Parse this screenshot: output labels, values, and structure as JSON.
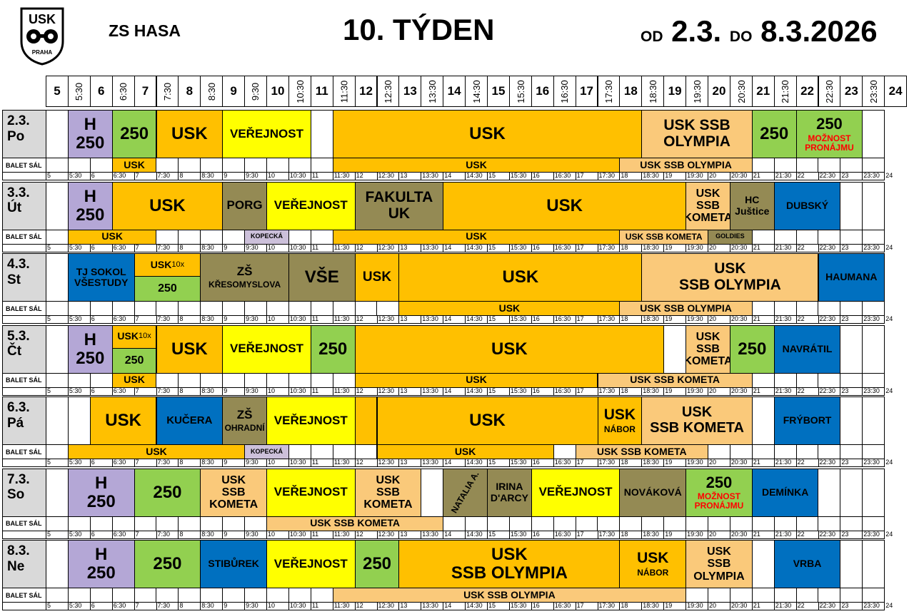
{
  "header": {
    "logo_text": "USK",
    "logo_subtext": "PRAHA",
    "venue": "ZS HASA",
    "week_title": "10. TÝDEN",
    "from_word": "OD",
    "from_date": "2.3.",
    "to_word": "DO",
    "to_date": "8.3.2026"
  },
  "hours": [
    "5",
    "5:30",
    "6",
    "6:30",
    "7",
    "7:30",
    "8",
    "8:30",
    "9",
    "9:30",
    "10",
    "10:30",
    "11",
    "11:30",
    "12",
    "12:30",
    "13",
    "13:30",
    "14",
    "14:30",
    "15",
    "15:30",
    "16",
    "16:30",
    "17",
    "17:30",
    "18",
    "18:30",
    "19",
    "19:30",
    "20",
    "20:30",
    "21",
    "21:30",
    "22",
    "22:30",
    "23",
    "23:30",
    "24"
  ],
  "ballet_label": "BALET SÁL",
  "colors": {
    "purple": "#b4a7d6",
    "green": "#92d050",
    "orange": "#ffc000",
    "yellow": "#ffff00",
    "olive": "#948a54",
    "blue": "#0070c0",
    "peach": "#fac97a",
    "lilac": "#ccc0da",
    "red_text": "#ff0000",
    "day_label_bg": "#d9d9d9"
  },
  "days": [
    {
      "label": "2.3.\nPo",
      "main": [
        {
          "s": 1,
          "e": 3,
          "text": "H\n250",
          "c": "purple",
          "fs": 24
        },
        {
          "s": 3,
          "e": 5,
          "text": "250",
          "c": "green",
          "fs": 24
        },
        {
          "s": 5,
          "e": 8,
          "text": "USK",
          "c": "orange",
          "fs": 24
        },
        {
          "s": 8,
          "e": 12,
          "text": "VEŘEJNOST",
          "c": "yellow",
          "fs": 17
        },
        {
          "s": 13,
          "e": 27,
          "text": "USK",
          "c": "orange",
          "fs": 24
        },
        {
          "s": 27,
          "e": 32,
          "text": "USK SSB\nOLYMPIA",
          "c": "peach",
          "fs": 21
        },
        {
          "s": 32,
          "e": 34,
          "text": "250",
          "c": "green",
          "fs": 24
        },
        {
          "s": 34,
          "e": 37,
          "text": "250",
          "c": "green",
          "fs": 22,
          "sub": "MOŽNOST\nPRONÁJMU",
          "sub_c": "red_text"
        }
      ],
      "ballet": [
        {
          "s": 3,
          "e": 5,
          "text": "USK",
          "c": "orange",
          "fs": 14
        },
        {
          "s": 13,
          "e": 26,
          "text": "USK",
          "c": "orange",
          "fs": 14
        },
        {
          "s": 26,
          "e": 32,
          "text": "USK SSB OLYMPIA",
          "c": "peach",
          "fs": 14
        }
      ]
    },
    {
      "label": "3.3.\nÚt",
      "main": [
        {
          "s": 1,
          "e": 3,
          "text": "H\n250",
          "c": "purple",
          "fs": 24
        },
        {
          "s": 3,
          "e": 8,
          "text": "USK",
          "c": "orange",
          "fs": 24
        },
        {
          "s": 8,
          "e": 10,
          "text": "PORG",
          "c": "olive",
          "fs": 17
        },
        {
          "s": 10,
          "e": 14,
          "text": "VEŘEJNOST",
          "c": "yellow",
          "fs": 17
        },
        {
          "s": 14,
          "e": 18,
          "text": "FAKULTA\nUK",
          "c": "olive",
          "fs": 21
        },
        {
          "s": 18,
          "e": 29,
          "text": "USK",
          "c": "orange",
          "fs": 24
        },
        {
          "s": 29,
          "e": 31,
          "text": "USK\nSSB\nKOMETA",
          "c": "peach",
          "fs": 16
        },
        {
          "s": 31,
          "e": 33,
          "text": "HC\nJuštice",
          "c": "olive",
          "fs": 14
        },
        {
          "s": 33,
          "e": 36,
          "text": "DUBSKÝ",
          "c": "blue",
          "fs": 14
        }
      ],
      "ballet": [
        {
          "s": 1,
          "e": 5,
          "text": "USK",
          "c": "orange",
          "fs": 14
        },
        {
          "s": 9,
          "e": 11,
          "text": "KOPECKÁ",
          "c": "lilac",
          "fs": 9
        },
        {
          "s": 13,
          "e": 26,
          "text": "USK",
          "c": "orange",
          "fs": 14
        },
        {
          "s": 26,
          "e": 30,
          "text": "USK SSB KOMETA",
          "c": "peach",
          "fs": 12
        },
        {
          "s": 30,
          "e": 32,
          "text": "GOLDIES",
          "c": "olive",
          "fs": 9
        }
      ]
    },
    {
      "label": "4.3.\nSt",
      "main": [
        {
          "s": 1,
          "e": 4,
          "text": "TJ SOKOL\nVŠESTUDY",
          "c": "blue",
          "fs": 14
        },
        {
          "s": 4,
          "e": 7,
          "text": "USK",
          "c": "orange",
          "fs": 14,
          "half": "top",
          "suffix": "10x"
        },
        {
          "s": 4,
          "e": 7,
          "text": "250",
          "c": "green",
          "fs": 16,
          "half": "bottom"
        },
        {
          "s": 7,
          "e": 11,
          "text": "ZŠ",
          "c": "olive",
          "fs": 17,
          "sub": "KŘESOMYSLOVA",
          "sub_c": "black"
        },
        {
          "s": 11,
          "e": 14,
          "text": "VŠE",
          "c": "olive",
          "fs": 24
        },
        {
          "s": 14,
          "e": 16,
          "text": "USK",
          "c": "orange",
          "fs": 19
        },
        {
          "s": 16,
          "e": 27,
          "text": "USK",
          "c": "orange",
          "fs": 24
        },
        {
          "s": 27,
          "e": 35,
          "text": "USK\nSSB OLYMPIA",
          "c": "peach",
          "fs": 21
        },
        {
          "s": 35,
          "e": 38,
          "text": "HAUMANA",
          "c": "blue",
          "fs": 14
        }
      ],
      "ballet": [
        {
          "s": 16,
          "e": 26,
          "text": "USK",
          "c": "orange",
          "fs": 14
        },
        {
          "s": 26,
          "e": 32,
          "text": "USK SSB OLYMPIA",
          "c": "peach",
          "fs": 14
        }
      ]
    },
    {
      "label": "5.3.\nČt",
      "main": [
        {
          "s": 1,
          "e": 3,
          "text": "H\n250",
          "c": "purple",
          "fs": 24
        },
        {
          "s": 3,
          "e": 5,
          "text": "USK",
          "c": "orange",
          "fs": 14,
          "half": "top",
          "suffix": "10x"
        },
        {
          "s": 3,
          "e": 5,
          "text": "250",
          "c": "green",
          "fs": 16,
          "half": "bottom"
        },
        {
          "s": 5,
          "e": 8,
          "text": "USK",
          "c": "orange",
          "fs": 24
        },
        {
          "s": 8,
          "e": 12,
          "text": "VEŘEJNOST",
          "c": "yellow",
          "fs": 17
        },
        {
          "s": 12,
          "e": 14,
          "text": "250",
          "c": "green",
          "fs": 24
        },
        {
          "s": 14,
          "e": 28,
          "text": "USK",
          "c": "orange",
          "fs": 24
        },
        {
          "s": 29,
          "e": 31,
          "text": "USK\nSSB\nKOMETA",
          "c": "peach",
          "fs": 16
        },
        {
          "s": 31,
          "e": 33,
          "text": "250",
          "c": "green",
          "fs": 24
        },
        {
          "s": 33,
          "e": 36,
          "text": "NAVRÁTIL",
          "c": "blue",
          "fs": 14
        }
      ],
      "ballet": [
        {
          "s": 3,
          "e": 5,
          "text": "USK",
          "c": "orange",
          "fs": 14
        },
        {
          "s": 14,
          "e": 25,
          "text": "USK",
          "c": "orange",
          "fs": 14
        },
        {
          "s": 25,
          "e": 32,
          "text": "USK SSB KOMETA",
          "c": "peach",
          "fs": 14
        }
      ]
    },
    {
      "label": "6.3.\nPá",
      "main": [
        {
          "s": 2,
          "e": 5,
          "text": "USK",
          "c": "orange",
          "fs": 24
        },
        {
          "s": 5,
          "e": 8,
          "text": "KUČERA",
          "c": "blue",
          "fs": 15
        },
        {
          "s": 8,
          "e": 10,
          "text": "ZŠ",
          "c": "olive",
          "fs": 17,
          "sub": "OHRADNÍ",
          "sub_c": "black"
        },
        {
          "s": 10,
          "e": 14,
          "text": "VEŘEJNOST",
          "c": "yellow",
          "fs": 17
        },
        {
          "s": 14,
          "e": 15,
          "text": "",
          "c": "orange",
          "fs": 14
        },
        {
          "s": 15,
          "e": 25,
          "text": "USK",
          "c": "orange",
          "fs": 24
        },
        {
          "s": 25,
          "e": 27,
          "text": "USK",
          "c": "orange",
          "fs": 21,
          "sub": "NÁBOR",
          "sub_c": "black"
        },
        {
          "s": 27,
          "e": 32,
          "text": "USK\nSSB KOMETA",
          "c": "peach",
          "fs": 20
        },
        {
          "s": 33,
          "e": 36,
          "text": "FRÝBORT",
          "c": "blue",
          "fs": 14
        }
      ],
      "ballet": [
        {
          "s": 1,
          "e": 9,
          "text": "USK",
          "c": "orange",
          "fs": 14
        },
        {
          "s": 9,
          "e": 11,
          "text": "KOPECKÁ",
          "c": "lilac",
          "fs": 9
        },
        {
          "s": 15,
          "e": 23,
          "text": "USK",
          "c": "orange",
          "fs": 14
        },
        {
          "s": 24,
          "e": 30,
          "text": "USK SSB KOMETA",
          "c": "peach",
          "fs": 14
        }
      ]
    },
    {
      "label": "7.3.\nSo",
      "main": [
        {
          "s": 1,
          "e": 4,
          "text": "H\n250",
          "c": "purple",
          "fs": 24
        },
        {
          "s": 4,
          "e": 7,
          "text": "250",
          "c": "green",
          "fs": 24
        },
        {
          "s": 7,
          "e": 10,
          "text": "USK\nSSB\nKOMETA",
          "c": "peach",
          "fs": 16
        },
        {
          "s": 10,
          "e": 14,
          "text": "VEŘEJNOST",
          "c": "yellow",
          "fs": 17
        },
        {
          "s": 14,
          "e": 17,
          "text": "USK\nSSB\nKOMETA",
          "c": "peach",
          "fs": 16
        },
        {
          "s": 18,
          "e": 20,
          "text": "NATALIA A.",
          "c": "olive",
          "fs": 12,
          "rot": true
        },
        {
          "s": 20,
          "e": 22,
          "text": "IRINA\nD'ARCY",
          "c": "olive",
          "fs": 14
        },
        {
          "s": 22,
          "e": 26,
          "text": "VEŘEJNOST",
          "c": "yellow",
          "fs": 17
        },
        {
          "s": 26,
          "e": 29,
          "text": "NOVÁKOVÁ",
          "c": "olive",
          "fs": 14
        },
        {
          "s": 29,
          "e": 32,
          "text": "250",
          "c": "green",
          "fs": 22,
          "sub": "MOŽNOST\nPRONÁJMU",
          "sub_c": "red_text"
        },
        {
          "s": 32,
          "e": 35,
          "text": "DEMÍNKA",
          "c": "blue",
          "fs": 14
        }
      ],
      "ballet": [
        {
          "s": 10,
          "e": 18,
          "text": "USK SSB KOMETA",
          "c": "peach",
          "fs": 14
        }
      ]
    },
    {
      "label": "8.3.\nNe",
      "main": [
        {
          "s": 1,
          "e": 4,
          "text": "H\n250",
          "c": "purple",
          "fs": 24
        },
        {
          "s": 4,
          "e": 7,
          "text": "250",
          "c": "green",
          "fs": 24
        },
        {
          "s": 7,
          "e": 10,
          "text": "STIBŮREK",
          "c": "blue",
          "fs": 14
        },
        {
          "s": 10,
          "e": 14,
          "text": "VEŘEJNOST",
          "c": "yellow",
          "fs": 17
        },
        {
          "s": 14,
          "e": 16,
          "text": "250",
          "c": "green",
          "fs": 24
        },
        {
          "s": 16,
          "e": 26,
          "text": "USK\nSSB OLYMPIA",
          "c": "orange",
          "fs": 24
        },
        {
          "s": 26,
          "e": 29,
          "text": "USK",
          "c": "orange",
          "fs": 21,
          "sub": "NÁBOR",
          "sub_c": "black"
        },
        {
          "s": 29,
          "e": 32,
          "text": "USK\nSSB\nOLYMPIA",
          "c": "peach",
          "fs": 16
        },
        {
          "s": 33,
          "e": 36,
          "text": "VRBA",
          "c": "blue",
          "fs": 14
        }
      ],
      "ballet": [
        {
          "s": 13,
          "e": 29,
          "text": "USK SSB OLYMPIA",
          "c": "peach",
          "fs": 14
        }
      ]
    }
  ]
}
